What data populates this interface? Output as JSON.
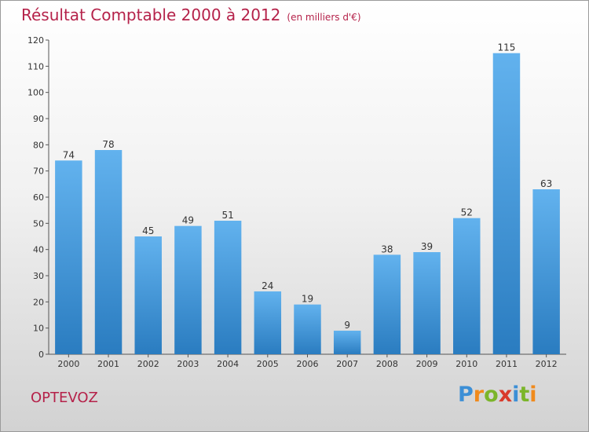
{
  "title": "Résultat Comptable 2000 à 2012",
  "subtitle": "(en milliers d'€)",
  "commune": "OPTEVOZ",
  "logo": {
    "text": "Proxiti",
    "letters": [
      {
        "ch": "P",
        "color": "#3c8fd6"
      },
      {
        "ch": "r",
        "color": "#f08a1c"
      },
      {
        "ch": "o",
        "color": "#7bb52a"
      },
      {
        "ch": "x",
        "color": "#d93a2b"
      },
      {
        "ch": "i",
        "color": "#3c8fd6"
      },
      {
        "ch": "t",
        "color": "#7bb52a"
      },
      {
        "ch": "i",
        "color": "#f08a1c"
      }
    ]
  },
  "colors": {
    "bar_light": "#62b2ee",
    "bar_dark": "#2a7cc0",
    "title": "#b5224a"
  },
  "chart_data": {
    "type": "bar",
    "categories": [
      "2000",
      "2001",
      "2002",
      "2003",
      "2004",
      "2005",
      "2006",
      "2007",
      "2008",
      "2009",
      "2010",
      "2011",
      "2012"
    ],
    "values": [
      74,
      78,
      45,
      49,
      51,
      24,
      19,
      9,
      38,
      39,
      52,
      115,
      63
    ],
    "title": "Résultat Comptable 2000 à 2012",
    "ylim": [
      0,
      120
    ],
    "yticks": [
      0,
      10,
      20,
      30,
      40,
      50,
      60,
      70,
      80,
      90,
      100,
      110,
      120
    ],
    "grid": false,
    "data_labels": true
  }
}
